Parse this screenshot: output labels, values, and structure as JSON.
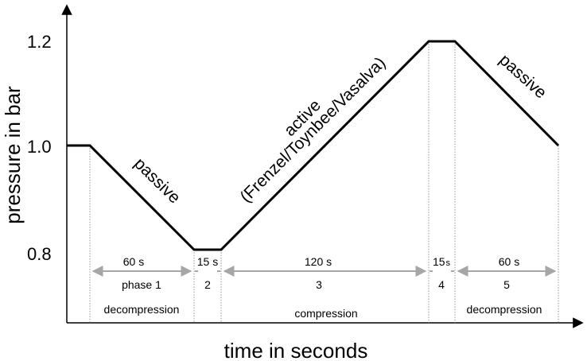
{
  "chart_data": {
    "type": "line",
    "title": "",
    "xlabel": "time in seconds",
    "ylabel": "pressure in bar",
    "yticks": [
      "0.8",
      "1.0",
      "1.2"
    ],
    "ylim": [
      0.8,
      1.2
    ],
    "grid": false,
    "series": [
      {
        "x": [
          -15,
          0,
          60,
          75,
          195,
          210,
          270
        ],
        "y": [
          1.0,
          1.0,
          0.8,
          0.8,
          1.2,
          1.2,
          1.0
        ]
      }
    ],
    "phases": [
      {
        "duration": "60 s",
        "number": "phase 1",
        "type": "decompression",
        "slope_label": "passive"
      },
      {
        "duration": "15 s",
        "number": "2",
        "type": "",
        "slope_label": ""
      },
      {
        "duration": "120 s",
        "number": "3",
        "type": "compression",
        "slope_label_line1": "active",
        "slope_label_line2": "(Frenzel/Toynbee/Vasalva)"
      },
      {
        "duration": "15 s",
        "number": "4",
        "type": "",
        "slope_label": ""
      },
      {
        "duration": "60 s",
        "number": "5",
        "type": "decompression",
        "slope_label": "passive"
      }
    ]
  }
}
